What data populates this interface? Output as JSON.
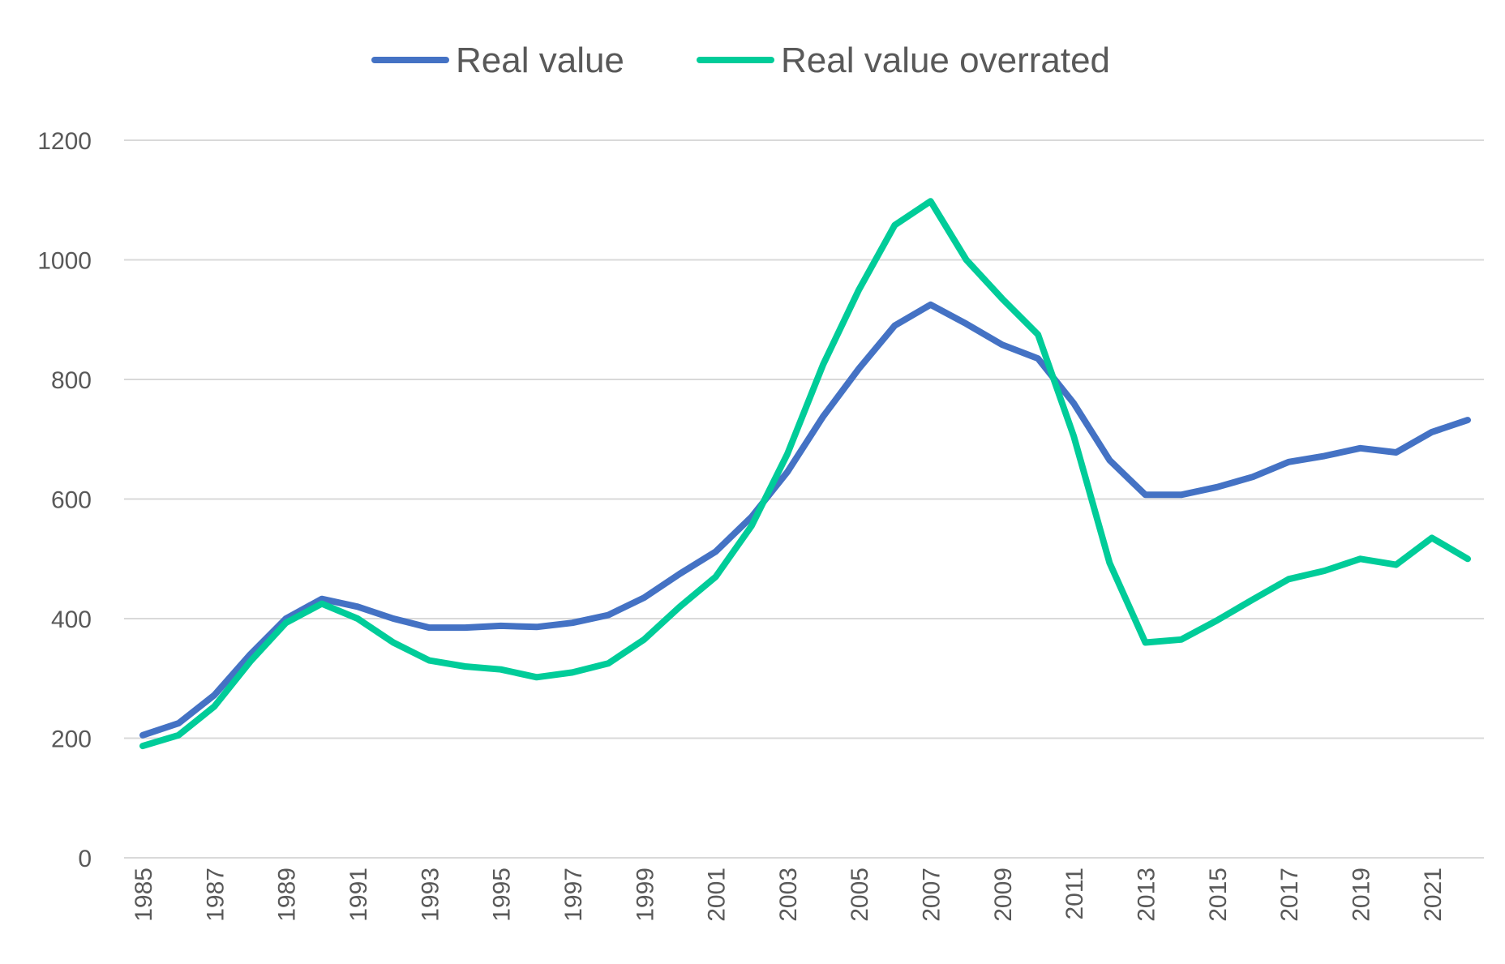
{
  "chart_data": {
    "type": "line",
    "title": "",
    "xlabel": "",
    "ylabel": "",
    "ylim": [
      0,
      1200
    ],
    "yticks": [
      0,
      200,
      400,
      600,
      800,
      1000,
      1200
    ],
    "x": [
      1985,
      1986,
      1987,
      1988,
      1989,
      1990,
      1991,
      1992,
      1993,
      1994,
      1995,
      1996,
      1997,
      1998,
      1999,
      2000,
      2001,
      2002,
      2003,
      2004,
      2005,
      2006,
      2007,
      2008,
      2009,
      2010,
      2011,
      2012,
      2013,
      2014,
      2015,
      2016,
      2017,
      2018,
      2019,
      2020,
      2021,
      2022
    ],
    "xtick_labels": [
      "1985",
      "1987",
      "1989",
      "1991",
      "1993",
      "1995",
      "1997",
      "1999",
      "2001",
      "2003",
      "2005",
      "2007",
      "2009",
      "2011",
      "2013",
      "2015",
      "2017",
      "2019",
      "2021"
    ],
    "grid": true,
    "legend_position": "top",
    "series": [
      {
        "name": "Real value",
        "color": "#4472c4",
        "values": [
          205,
          225,
          272,
          340,
          400,
          433,
          420,
          400,
          385,
          385,
          388,
          386,
          393,
          406,
          435,
          475,
          512,
          570,
          645,
          738,
          818,
          890,
          925,
          893,
          858,
          835,
          760,
          665,
          607,
          607,
          620,
          637,
          662,
          672,
          685,
          678,
          712,
          732
        ]
      },
      {
        "name": "Real value overrated",
        "color": "#00cc99",
        "values": [
          187,
          205,
          253,
          328,
          393,
          425,
          400,
          360,
          330,
          320,
          315,
          302,
          310,
          325,
          365,
          420,
          470,
          555,
          675,
          825,
          950,
          1058,
          1098,
          1000,
          935,
          875,
          705,
          493,
          360,
          365,
          397,
          432,
          466,
          480,
          500,
          490,
          535,
          500
        ]
      }
    ]
  }
}
